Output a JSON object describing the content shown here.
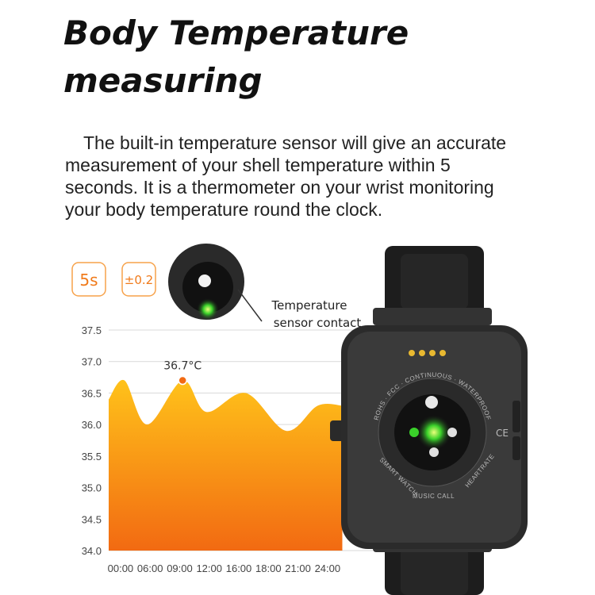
{
  "chart_data": {
    "type": "area",
    "title": [
      "Body Temperature",
      "measuring"
    ],
    "subtitle": [
      "The built-in temperature sensor will give an accurate",
      "measurement of your shell temperature within 5",
      "seconds. It is a thermometer on your wrist monitoring",
      "your body temperature round the clock."
    ],
    "badges": [
      "5s",
      "±0.2"
    ],
    "sensor_label": [
      "Temperature",
      "sensor contact"
    ],
    "peak_label": "36.7°C",
    "device_labels": [
      "ROHS · FCC · CONTINUOUS · WATERPROOF",
      "SMART WATCH",
      "MUSIC CALL",
      "HEARTRATE",
      "CE"
    ],
    "x": [
      -1.2,
      0.4,
      2.7,
      6.3,
      8.7,
      12.7,
      16.8,
      20,
      22.5
    ],
    "values": [
      36.4,
      36.7,
      36.0,
      36.7,
      36.2,
      36.5,
      35.9,
      36.3,
      36.3
    ],
    "peak_index": 3,
    "colors": [
      "#ffc21a",
      "#f26a12"
    ],
    "xlim": [
      -1.2,
      25.6
    ],
    "xticks": [
      {
        "value": 0,
        "label": "00:00"
      },
      {
        "value": 3,
        "label": "06:00"
      },
      {
        "value": 6,
        "label": "09:00"
      },
      {
        "value": 9,
        "label": "12:00"
      },
      {
        "value": 12,
        "label": "16:00"
      },
      {
        "value": 15,
        "label": "18:00"
      },
      {
        "value": 18,
        "label": "21:00"
      },
      {
        "value": 21,
        "label": "24:00"
      }
    ],
    "ylim": [
      34.0,
      37.5
    ],
    "yticks": [
      {
        "value": 34,
        "label": "34.0"
      },
      34.5,
      {
        "value": 35,
        "label": "35.0"
      },
      35.5,
      {
        "value": 36,
        "label": "36.0"
      },
      36.5,
      {
        "value": 37,
        "label": "37.0"
      },
      37.5
    ],
    "grid": true
  }
}
